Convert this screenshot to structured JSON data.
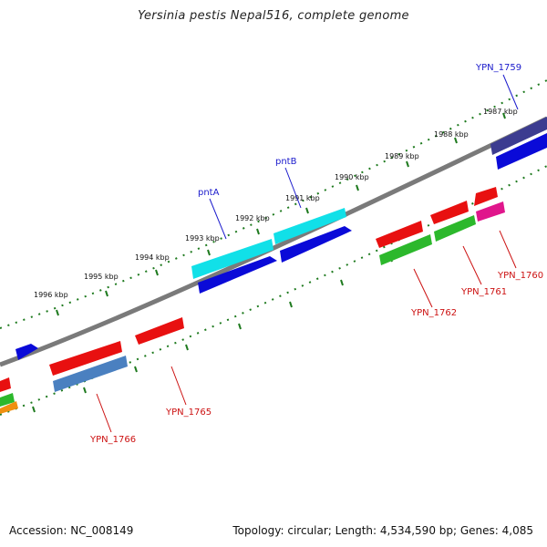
{
  "title": "Yersinia pestis Nepal516, complete genome",
  "footer": {
    "accession": "Accession: NC_008149",
    "summary": "Topology: circular; Length: 4,534,590 bp; Genes: 4,085"
  },
  "ticks": [
    {
      "label": "1987 kbp"
    },
    {
      "label": "1988 kbp"
    },
    {
      "label": "1989 kbp"
    },
    {
      "label": "1990 kbp"
    },
    {
      "label": "1991 kbp"
    },
    {
      "label": "1992 kbp"
    },
    {
      "label": "1993 kbp"
    },
    {
      "label": "1994 kbp"
    },
    {
      "label": "1995 kbp"
    },
    {
      "label": "1996 kbp"
    }
  ],
  "gene_labels": [
    {
      "name": "YPN_1759",
      "color": "#1a1acc"
    },
    {
      "name": "pntB",
      "color": "#1a1acc"
    },
    {
      "name": "pntA",
      "color": "#1a1acc"
    },
    {
      "name": "YPN_1760",
      "color": "#cc1111"
    },
    {
      "name": "YPN_1761",
      "color": "#cc1111"
    },
    {
      "name": "YPN_1762",
      "color": "#cc1111"
    },
    {
      "name": "YPN_1765",
      "color": "#cc1111"
    },
    {
      "name": "YPN_1766",
      "color": "#cc1111"
    }
  ],
  "colors": {
    "backbone": "#7a7a7a",
    "tick_dots": "#1e7a1e",
    "forward_blue": "#0a0ad8",
    "cyan": "#11e0e8",
    "red": "#e81010",
    "green": "#2cb82c",
    "magenta": "#e0168c",
    "purple": "#3c3c90",
    "steelblue": "#4a80c0",
    "orange": "#f09010"
  }
}
